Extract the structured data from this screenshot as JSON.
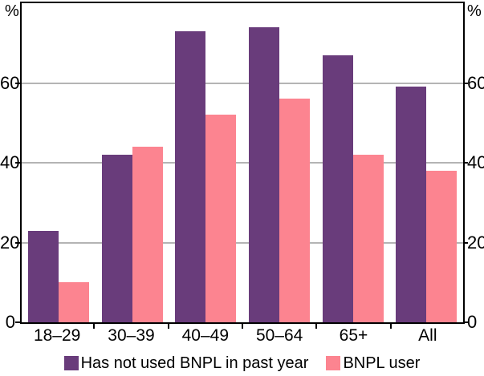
{
  "chart_data": {
    "type": "bar",
    "categories": [
      "18–29",
      "30–39",
      "40–49",
      "50–64",
      "65+",
      "All"
    ],
    "series": [
      {
        "name": "Has not used BNPL in past year",
        "color": "#693C7B",
        "values": [
          23,
          42,
          73,
          74,
          67,
          59
        ]
      },
      {
        "name": "BNPL user",
        "color": "#FC8490",
        "values": [
          10,
          44,
          52,
          56,
          42,
          38
        ]
      }
    ],
    "ylabel_left": "%",
    "ylabel_right": "%",
    "yticks": [
      0,
      20,
      40,
      60
    ],
    "ylim": [
      0,
      80
    ],
    "grid": true,
    "gridline_color": "#b4b4b4",
    "axis_color": "#000000",
    "legend_position": "bottom"
  }
}
